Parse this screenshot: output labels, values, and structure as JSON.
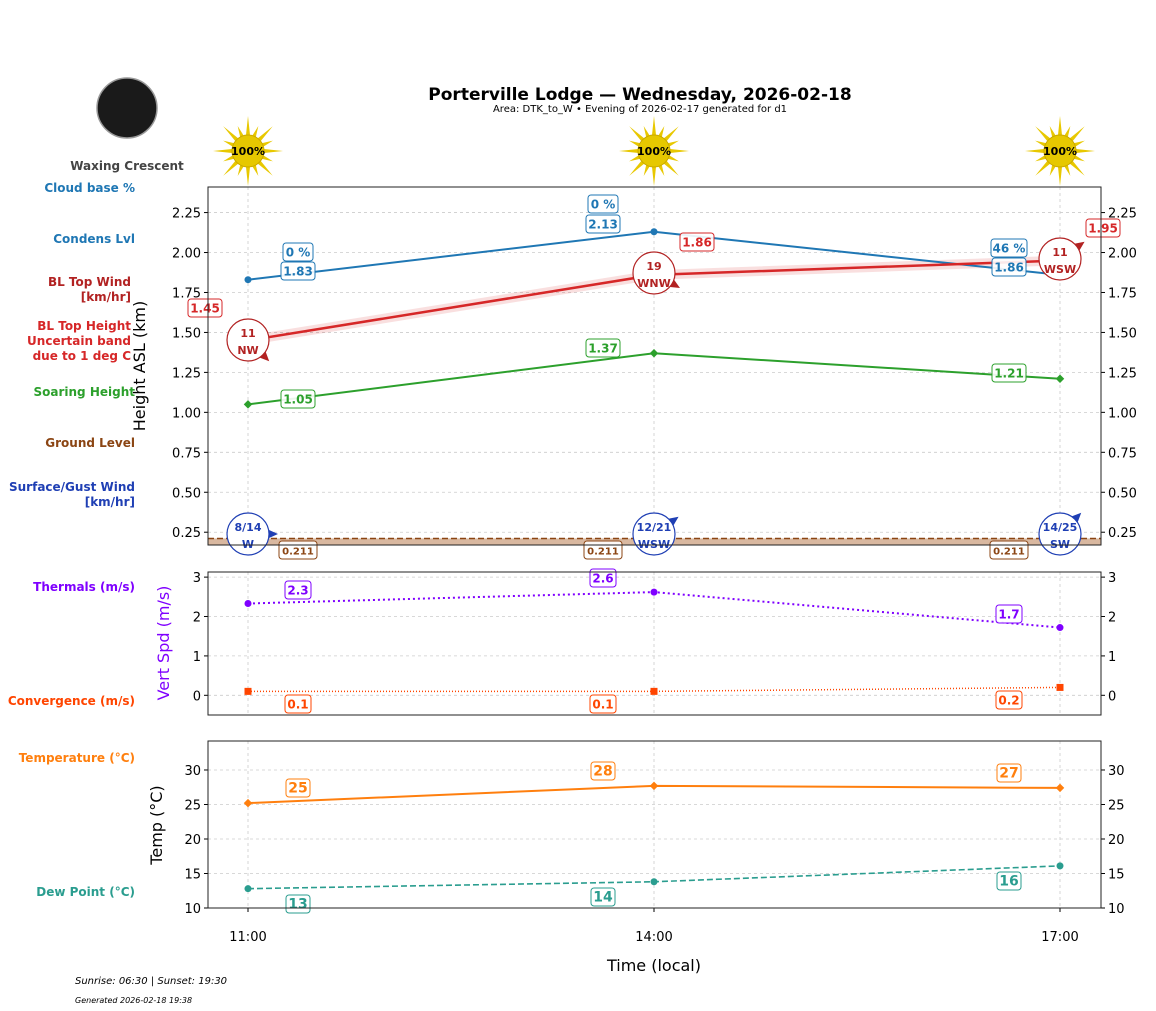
{
  "header": {
    "title": "Porterville Lodge — Wednesday, 2026-02-18",
    "subtitle": "Area: DTK_to_W • Evening of 2026-02-17 generated for d1",
    "moon_phase": "Waxing Crescent"
  },
  "footer": {
    "sun_times": "Sunrise: 06:30 | Sunset: 19:30",
    "generated": "Generated 2026-02-18 19:38"
  },
  "left_labels": [
    {
      "lines": [
        "Cloud base %"
      ],
      "color": "#1f77b4"
    },
    {
      "lines": [
        "Condens Lvl"
      ],
      "color": "#1f77b4"
    },
    {
      "lines": [
        "BL Top Wind",
        "[km/hr]"
      ],
      "color": "#b22222"
    },
    {
      "lines": [
        "BL Top Height",
        "Uncertain band",
        "due to 1 deg C"
      ],
      "color": "#d62728"
    },
    {
      "lines": [
        "Soaring Height"
      ],
      "color": "#2ca02c"
    },
    {
      "lines": [
        "Ground Level"
      ],
      "color": "#8b4513"
    },
    {
      "lines": [
        "Surface/Gust Wind",
        "[km/hr]"
      ],
      "color": "#1f3fb4"
    },
    {
      "lines": [
        "Thermals (m/s)"
      ],
      "color": "#7f00ff"
    },
    {
      "lines": [
        "Convergence (m/s)"
      ],
      "color": "#ff4500"
    },
    {
      "lines": [
        "Temperature (°C)"
      ],
      "color": "#ff7f0e"
    },
    {
      "lines": [
        "Dew Point (°C)"
      ],
      "color": "#2a9d8f"
    }
  ],
  "chart_data": {
    "type": "line",
    "x": [
      "11:00",
      "14:00",
      "17:00"
    ],
    "xlabel": "Time (local)",
    "xtick_labels": [
      "11:00",
      "14:00",
      "17:00"
    ],
    "sun_cover": [
      "100%",
      "100%",
      "100%"
    ],
    "grid": true,
    "panels": [
      {
        "ylabel": "Height ASL (km)",
        "ylim": [
          0.17,
          2.41
        ],
        "yticks": [
          "0.25",
          "0.50",
          "0.75",
          "1.00",
          "1.25",
          "1.50",
          "1.75",
          "2.00",
          "2.25"
        ],
        "series": [
          {
            "key": "condens",
            "values": [
              1.83,
              2.13,
              1.86
            ],
            "labels": [
              "1.83",
              "2.13",
              "1.86"
            ],
            "color": "#1f77b4"
          },
          {
            "key": "bl_top",
            "values": [
              1.45,
              1.86,
              1.95
            ],
            "labels": [
              "1.45",
              "1.86",
              "1.95"
            ],
            "color": "#d62728"
          },
          {
            "key": "soaring",
            "values": [
              1.05,
              1.37,
              1.21
            ],
            "labels": [
              "1.05",
              "1.37",
              "1.21"
            ],
            "color": "#2ca02c"
          },
          {
            "key": "ground",
            "values": [
              0.211,
              0.211,
              0.211
            ],
            "labels": [
              "0.211",
              "0.211",
              "0.211"
            ],
            "color": "#8b4513"
          }
        ],
        "cloud_base_pct": [
          "0 %",
          "0 %",
          "46 %"
        ],
        "bl_top_wind": [
          {
            "speed": "11",
            "dir": "NW"
          },
          {
            "speed": "19",
            "dir": "WNW"
          },
          {
            "speed": "11",
            "dir": "WSW"
          }
        ],
        "surface_wind": [
          {
            "speed": "8/14",
            "dir": "W"
          },
          {
            "speed": "12/21",
            "dir": "WSW"
          },
          {
            "speed": "14/25",
            "dir": "SW"
          }
        ]
      },
      {
        "ylabel": "Vert Spd (m/s)",
        "ylim": [
          -0.5,
          3.13
        ],
        "yticks": [
          "0",
          "1",
          "2",
          "3"
        ],
        "series": [
          {
            "key": "thermals",
            "values": [
              2.33,
              2.62,
              1.72
            ],
            "labels": [
              "2.3",
              "2.6",
              "1.7"
            ],
            "color": "#7f00ff"
          },
          {
            "key": "convergence",
            "values": [
              0.1,
              0.1,
              0.2
            ],
            "labels": [
              "0.1",
              "0.1",
              "0.2"
            ],
            "color": "#ff4500"
          }
        ]
      },
      {
        "ylabel": "Temp (°C)",
        "ylim": [
          10,
          34.2
        ],
        "yticks": [
          "10",
          "15",
          "20",
          "25",
          "30"
        ],
        "series": [
          {
            "key": "temperature",
            "values": [
              25.2,
              27.7,
              27.4
            ],
            "labels": [
              "25",
              "28",
              "27"
            ],
            "color": "#ff7f0e"
          },
          {
            "key": "dew_point",
            "values": [
              12.8,
              13.8,
              16.1
            ],
            "labels": [
              "13",
              "14",
              "16"
            ],
            "color": "#2a9d8f"
          }
        ]
      }
    ]
  }
}
